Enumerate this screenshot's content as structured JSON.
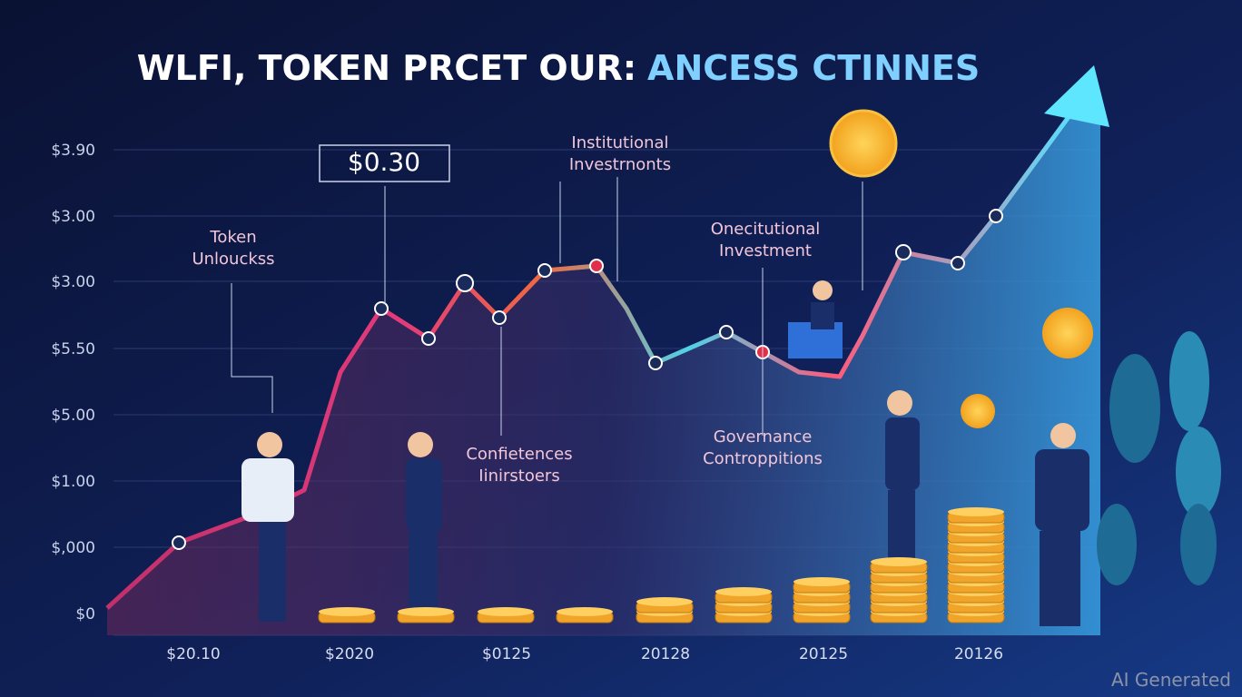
{
  "header": {
    "title_main": "WLFI, TOKEN PRCET OUR:",
    "title_accent": "ANCESS CTINNES"
  },
  "y_labels": [
    "$3.90",
    "$3.00",
    "$3.00",
    "$5.50",
    "$5.00",
    "$1.00",
    "$,000",
    "$0"
  ],
  "x_labels": [
    "$20.10",
    "$2020",
    "$0125",
    "20128",
    "20125",
    "20126"
  ],
  "price_box": "$0.30",
  "annotations": [
    {
      "line1": "Token",
      "line2": "Unlouckss"
    },
    {
      "line1": "Institutional",
      "line2": "Investrnonts"
    },
    {
      "line1": "Onecitutional",
      "line2": "Investment"
    },
    {
      "line1": "Confietences",
      "line2": "Iinirstoers"
    },
    {
      "line1": "Governance",
      "line2": "Controppitions"
    }
  ],
  "watermark": "AI Generated"
}
